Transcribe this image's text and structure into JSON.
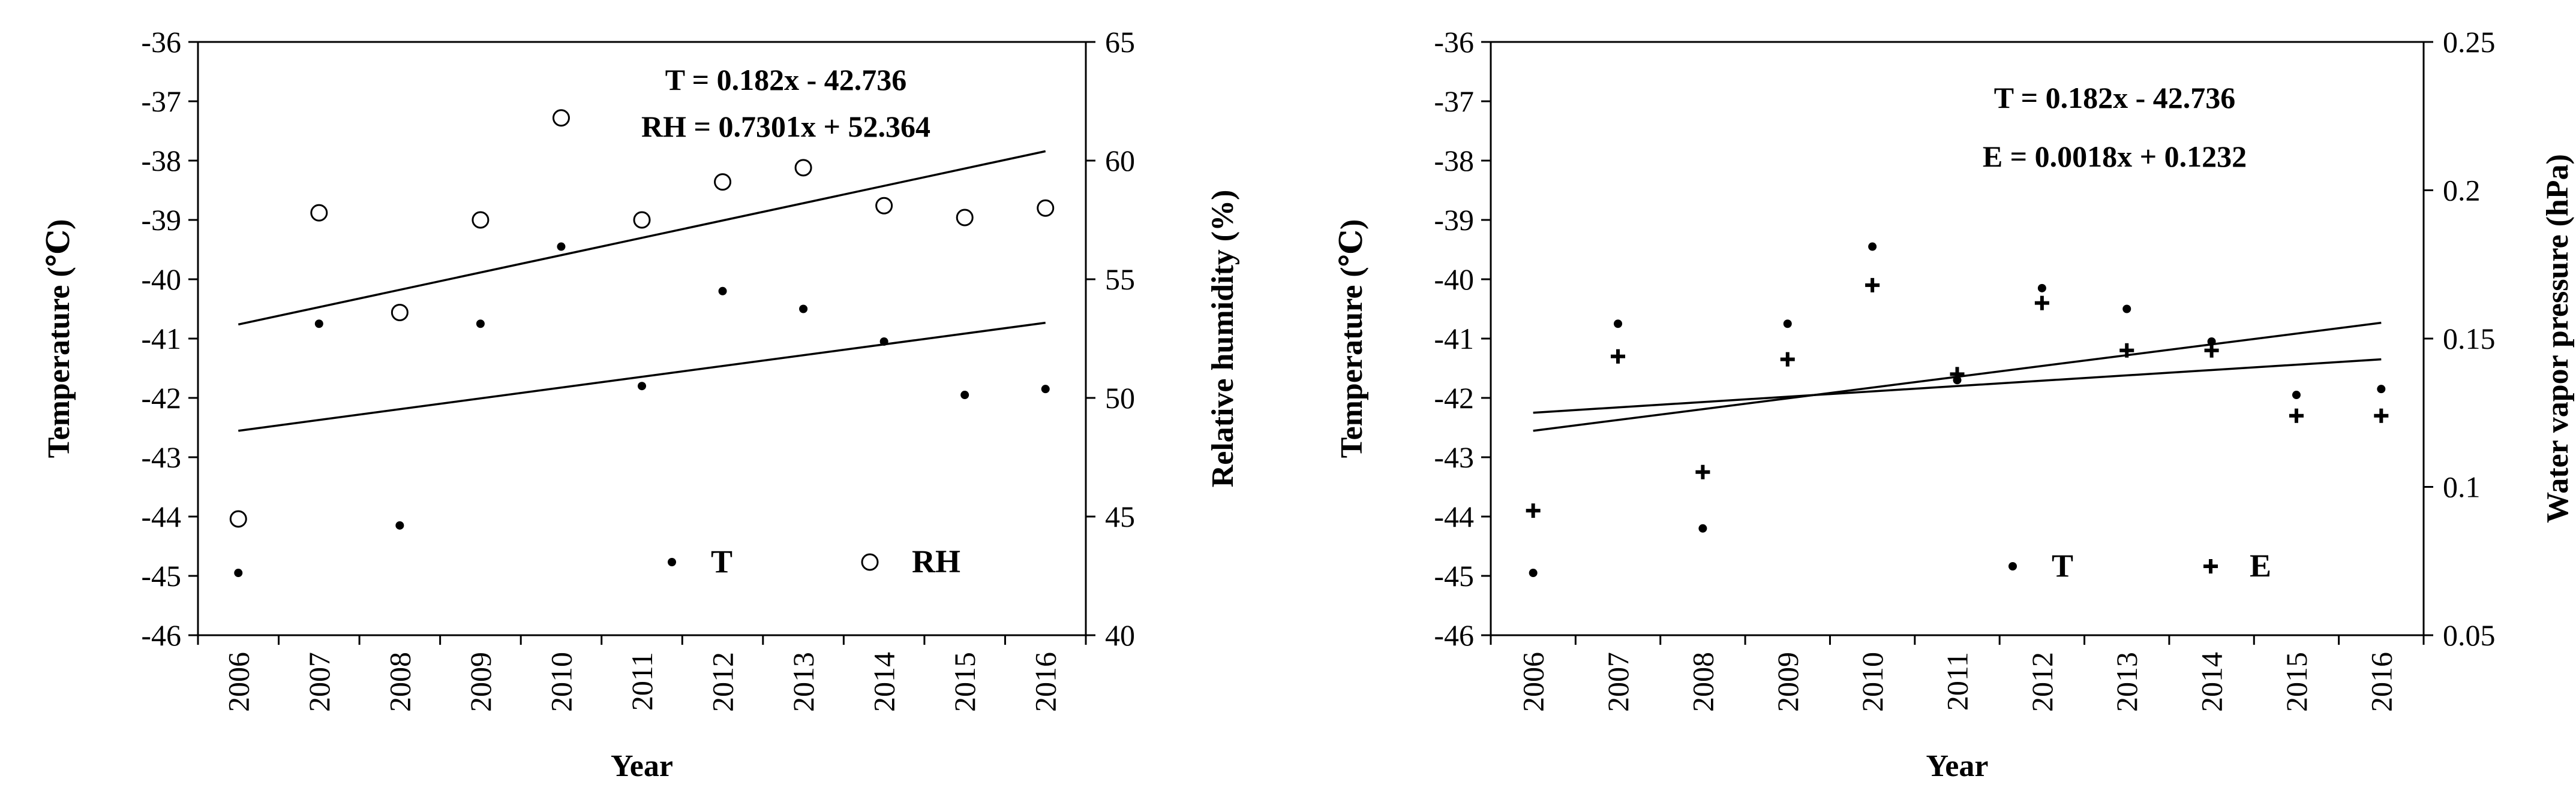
{
  "chart_data": [
    {
      "type": "scatter",
      "x_categories": [
        "2006",
        "2007",
        "2008",
        "2009",
        "2010",
        "2011",
        "2012",
        "2013",
        "2014",
        "2015",
        "2016"
      ],
      "xlabel": "Year",
      "ylabel_left": "Temperature  (℃)",
      "ylabel_right": "Relative humidity  (%)",
      "ylim_left": [
        -46,
        -36
      ],
      "ylim_right": [
        40,
        65
      ],
      "yticks_left": [
        -36,
        -37,
        -38,
        -39,
        -40,
        -41,
        -42,
        -43,
        -44,
        -45,
        -46
      ],
      "yticks_right": [
        65,
        60,
        55,
        50,
        45,
        40
      ],
      "equations": [
        "T = 0.182x - 42.736",
        "RH = 0.7301x + 52.364"
      ],
      "series": [
        {
          "name": "T",
          "axis": "left",
          "marker": "dot",
          "values": [
            -44.95,
            -40.75,
            -44.15,
            -40.75,
            -39.45,
            -41.8,
            -40.2,
            -40.5,
            -41.05,
            -41.95,
            -41.85
          ],
          "trend": {
            "slope": 0.182,
            "intercept": -42.736
          }
        },
        {
          "name": "RH",
          "axis": "right",
          "marker": "circle",
          "values": [
            44.9,
            57.8,
            53.6,
            57.5,
            61.8,
            57.5,
            59.1,
            59.7,
            58.1,
            57.6,
            58.0
          ],
          "trend": {
            "slope": 0.7301,
            "intercept": 52.364
          }
        }
      ],
      "legend": {
        "position": "bottom-right",
        "items": [
          "T",
          "RH"
        ]
      },
      "grid": false
    },
    {
      "type": "scatter",
      "x_categories": [
        "2006",
        "2007",
        "2008",
        "2009",
        "2010",
        "2011",
        "2012",
        "2013",
        "2014",
        "2015",
        "2016"
      ],
      "xlabel": "Year",
      "ylabel_left": "Temperature  (℃)",
      "ylabel_right": "Water vapor pressure (hPa)",
      "ylim_left": [
        -46,
        -36
      ],
      "ylim_right": [
        0.05,
        0.25
      ],
      "yticks_left": [
        -36,
        -37,
        -38,
        -39,
        -40,
        -41,
        -42,
        -43,
        -44,
        -45,
        -46
      ],
      "yticks_right": [
        "0.25",
        "0.2",
        "0.15",
        "0.1",
        "0.05"
      ],
      "equations": [
        "T = 0.182x - 42.736",
        "E = 0.0018x + 0.1232"
      ],
      "series": [
        {
          "name": "T",
          "axis": "left",
          "marker": "dot",
          "values": [
            -44.95,
            -40.75,
            -44.2,
            -40.75,
            -39.45,
            -41.7,
            -40.15,
            -40.5,
            -41.05,
            -41.95,
            -41.85
          ],
          "trend": {
            "slope": 0.182,
            "intercept": -42.736
          }
        },
        {
          "name": "E",
          "axis": "right",
          "marker": "plus",
          "values": [
            0.092,
            0.144,
            0.105,
            0.143,
            0.168,
            0.138,
            0.162,
            0.146,
            0.146,
            0.124,
            0.124
          ],
          "trend": {
            "slope": 0.0018,
            "intercept": 0.1232
          }
        }
      ],
      "legend": {
        "position": "bottom-right",
        "items": [
          "T",
          "E"
        ]
      },
      "grid": false
    }
  ]
}
